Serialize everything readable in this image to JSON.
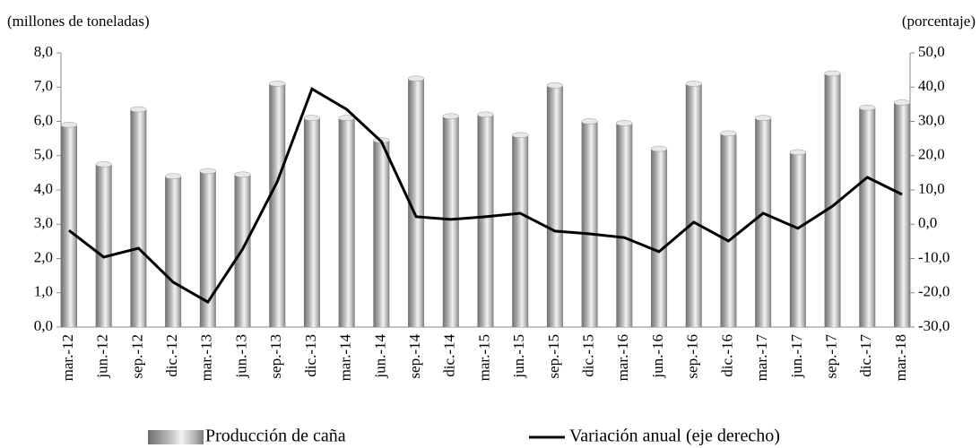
{
  "chart_data": {
    "type": "bar-line",
    "y_axis_title": "(millones de toneladas)",
    "y2_axis_title": "(porcentaje)",
    "categories": [
      "mar.-12",
      "jun.-12",
      "sep.-12",
      "dic.-12",
      "mar.-13",
      "jun.-13",
      "sep.-13",
      "dic.-13",
      "mar.-14",
      "jun.-14",
      "sep.-14",
      "dic.-14",
      "mar.-15",
      "jun.-15",
      "sep.-15",
      "dic.-15",
      "mar.-16",
      "jun.-16",
      "sep.-16",
      "dic.-16",
      "mar.-17",
      "jun.-17",
      "sep.-17",
      "dic.-17",
      "mar.-18"
    ],
    "series": [
      {
        "name": "Producción de caña",
        "type": "bar",
        "color": "#b3b3b3",
        "values": [
          5.9,
          4.75,
          6.35,
          4.4,
          4.55,
          4.45,
          7.1,
          6.1,
          6.1,
          5.45,
          7.25,
          6.15,
          6.2,
          5.6,
          7.05,
          6.0,
          5.95,
          5.2,
          7.1,
          5.65,
          6.1,
          5.1,
          7.4,
          6.4,
          6.55
        ]
      },
      {
        "name": "Variación anual (eje derecho)",
        "type": "line",
        "axis": "y2",
        "color": "#000000",
        "values": [
          -1.8,
          -9.6,
          -7.0,
          -16.9,
          -22.7,
          -7.3,
          12.4,
          39.5,
          33.5,
          24.1,
          2.2,
          1.4,
          2.2,
          3.2,
          -2.0,
          -2.8,
          -3.9,
          -8.0,
          0.6,
          -4.9,
          3.2,
          -1.2,
          5.3,
          13.7,
          8.7
        ]
      }
    ],
    "ylim": [
      0,
      8
    ],
    "yticks": [
      {
        "value": 0,
        "label": "0,0"
      },
      {
        "value": 1,
        "label": "1,0"
      },
      {
        "value": 2,
        "label": "2,0"
      },
      {
        "value": 3,
        "label": "3,0"
      },
      {
        "value": 4,
        "label": "4,0"
      },
      {
        "value": 5,
        "label": "5,0"
      },
      {
        "value": 6,
        "label": "6,0"
      },
      {
        "value": 7,
        "label": "7,0"
      },
      {
        "value": 8,
        "label": "8,0"
      }
    ],
    "y2lim": [
      -30,
      50
    ],
    "y2ticks": [
      {
        "value": -30,
        "label": "-30,0"
      },
      {
        "value": -20,
        "label": "-20,0"
      },
      {
        "value": -10,
        "label": "-10,0"
      },
      {
        "value": 0,
        "label": "0,0"
      },
      {
        "value": 10,
        "label": "10,0"
      },
      {
        "value": 20,
        "label": "20,0"
      },
      {
        "value": 30,
        "label": "30,0"
      },
      {
        "value": 40,
        "label": "40,0"
      },
      {
        "value": 50,
        "label": "50,0"
      }
    ],
    "grid": false
  }
}
